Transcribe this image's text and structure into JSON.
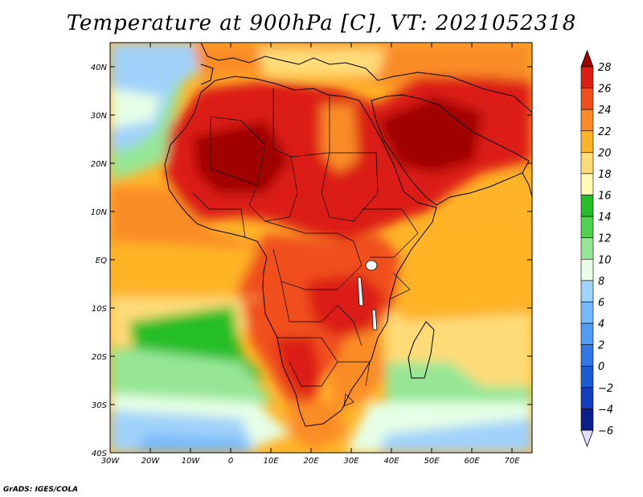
{
  "title": "Temperature at 900hPa [C], VT: 2021052318",
  "credit": "GrADS: IGES/COLA",
  "map": {
    "lon_range": [
      -30,
      75
    ],
    "lat_range": [
      -40,
      45
    ],
    "lat_ticks": [
      "40N",
      "30N",
      "20N",
      "10N",
      "EQ",
      "10S",
      "20S",
      "30S",
      "40S"
    ],
    "lon_ticks": [
      "30W",
      "20W",
      "10W",
      "0",
      "10E",
      "20E",
      "30E",
      "40E",
      "50E",
      "60E",
      "70E"
    ]
  },
  "colorbar": {
    "levels": [
      "28",
      "26",
      "24",
      "22",
      "20",
      "18",
      "16",
      "14",
      "12",
      "10",
      "8",
      "6",
      "4",
      "2",
      "0",
      "-2",
      "-4",
      "-6"
    ],
    "colors": [
      "#a00000",
      "#dc1e14",
      "#f0501e",
      "#fa8c28",
      "#ffb428",
      "#ffdc78",
      "#fffab4",
      "#28be28",
      "#50d250",
      "#96e696",
      "#e6ffe6",
      "#a0d2fa",
      "#78b9fa",
      "#509bf5",
      "#3278e6",
      "#1e5ad2",
      "#143cbe",
      "#0a1e8c",
      "#e1e1ff"
    ]
  }
}
